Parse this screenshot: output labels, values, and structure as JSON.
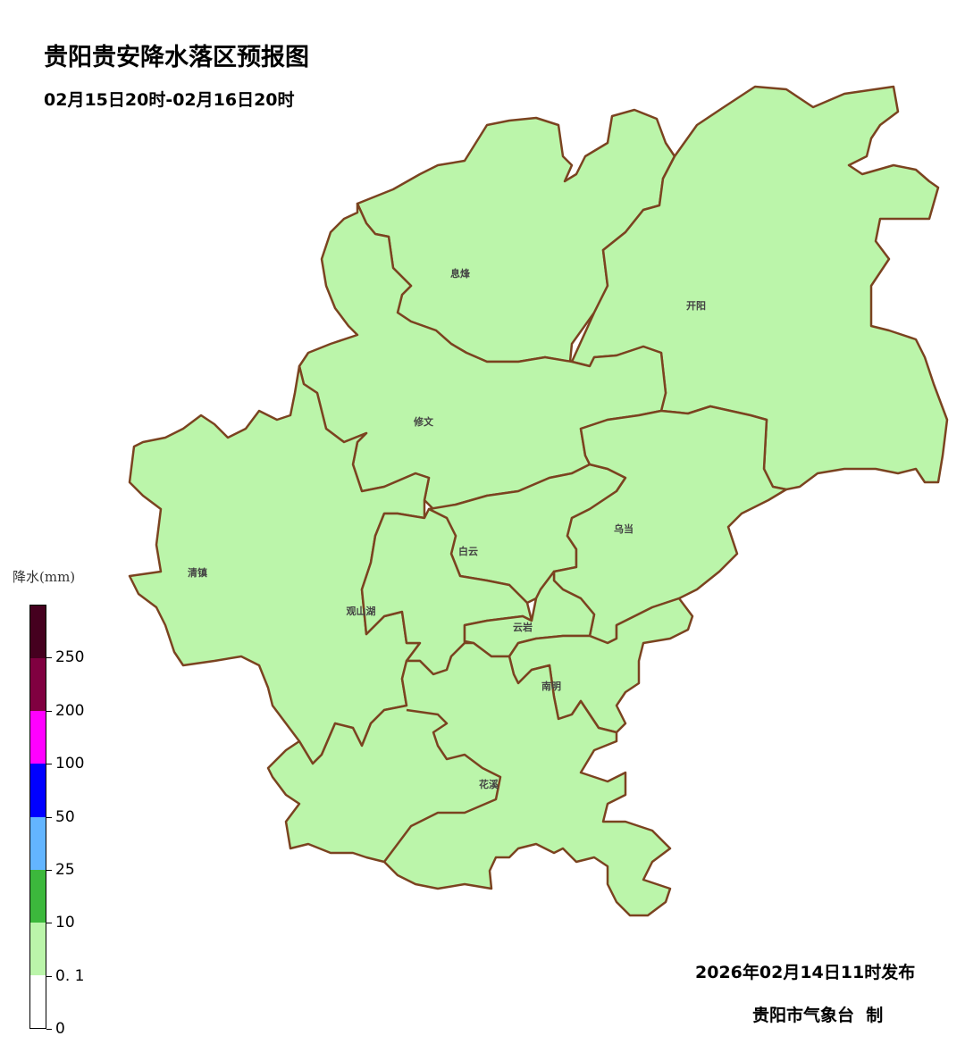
{
  "header": {
    "title": "贵阳贵安降水落区预报图",
    "period": "02月15日20时-02月16日20时"
  },
  "map": {
    "fill_color": "#bbf5aa",
    "border_color": "#7b4320",
    "precipitation_category": "0.1-10",
    "districts": [
      {
        "id": "xifeng",
        "name": "息烽"
      },
      {
        "id": "kaiyang",
        "name": "开阳"
      },
      {
        "id": "xiuwen",
        "name": "修文"
      },
      {
        "id": "qingzhen",
        "name": "清镇"
      },
      {
        "id": "baiyun",
        "name": "白云"
      },
      {
        "id": "wudang",
        "name": "乌当"
      },
      {
        "id": "guanshanhu",
        "name": "观山湖"
      },
      {
        "id": "yunyan",
        "name": "云岩"
      },
      {
        "id": "nanming",
        "name": "南明"
      },
      {
        "id": "huaxi",
        "name": "花溪"
      }
    ]
  },
  "legend": {
    "title": "降水(mm)",
    "colors": [
      "#45001f",
      "#800040",
      "#ff00ff",
      "#0000ff",
      "#63b5ff",
      "#3cb83c",
      "#bbf5aa",
      "#ffffff"
    ],
    "ticks": [
      "250",
      "200",
      "100",
      "50",
      "25",
      "10",
      "0. 1",
      "0"
    ]
  },
  "footer": {
    "issued": "2026年02月14日11时发布",
    "agency": "贵阳市气象台  制"
  }
}
